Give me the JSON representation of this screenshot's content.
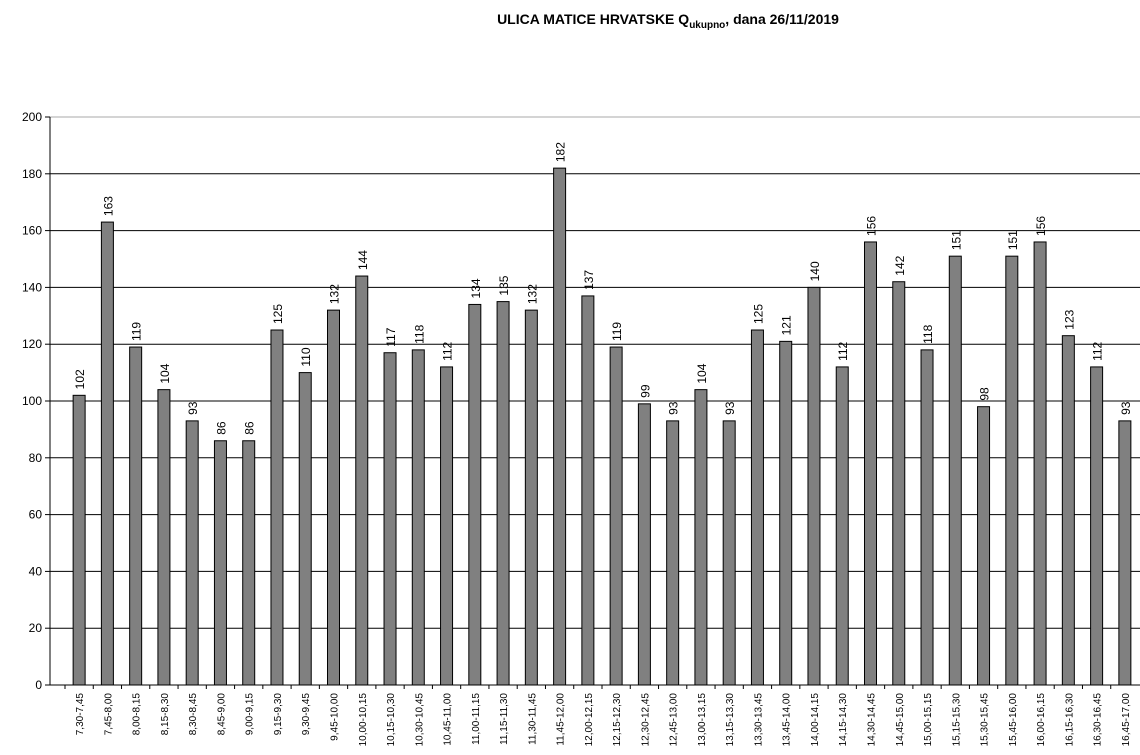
{
  "chart_data": {
    "type": "bar",
    "title": {
      "text": "ULICA MATICE HRVATSKE Q",
      "subscript": "ukupno",
      "suffix": ", dana 26/11/2019"
    },
    "categories": [
      "7,30-7,45",
      "7,45-8,00",
      "8,00-8,15",
      "8,15-8,30",
      "8,30-8,45",
      "8,45-9,00",
      "9,00-9,15",
      "9,15-9,30",
      "9,30-9,45",
      "9,45-10,00",
      "10,00-10,15",
      "10,15-10,30",
      "10,30-10,45",
      "10,45-11,00",
      "11,00-11,15",
      "11,15-11,30",
      "11,30-11,45",
      "11,45-12,00",
      "12,00-12,15",
      "12,15-12,30",
      "12,30-12,45",
      "12,45-13,00",
      "13,00-13,15",
      "13,15-13,30",
      "13,30-13,45",
      "13,45-14,00",
      "14,00-14,15",
      "14,15-14,30",
      "14,30-14,45",
      "14,45-15,00",
      "15,00-15,15",
      "15,15-15,30",
      "15,30-15,45",
      "15,45-16,00",
      "16,00-16,15",
      "16,15-16,30",
      "16,30-16,45",
      "16,45-17,00"
    ],
    "values": [
      102,
      163,
      119,
      104,
      93,
      86,
      86,
      125,
      110,
      132,
      144,
      117,
      118,
      112,
      134,
      135,
      132,
      182,
      137,
      119,
      99,
      93,
      104,
      93,
      125,
      121,
      140,
      112,
      156,
      142,
      118,
      151,
      98,
      151,
      156,
      123,
      112,
      93
    ],
    "color": "#808080",
    "ylim": [
      0,
      200
    ],
    "yticks": [
      0,
      20,
      40,
      60,
      80,
      100,
      120,
      140,
      160,
      180,
      200
    ],
    "grid": true
  }
}
